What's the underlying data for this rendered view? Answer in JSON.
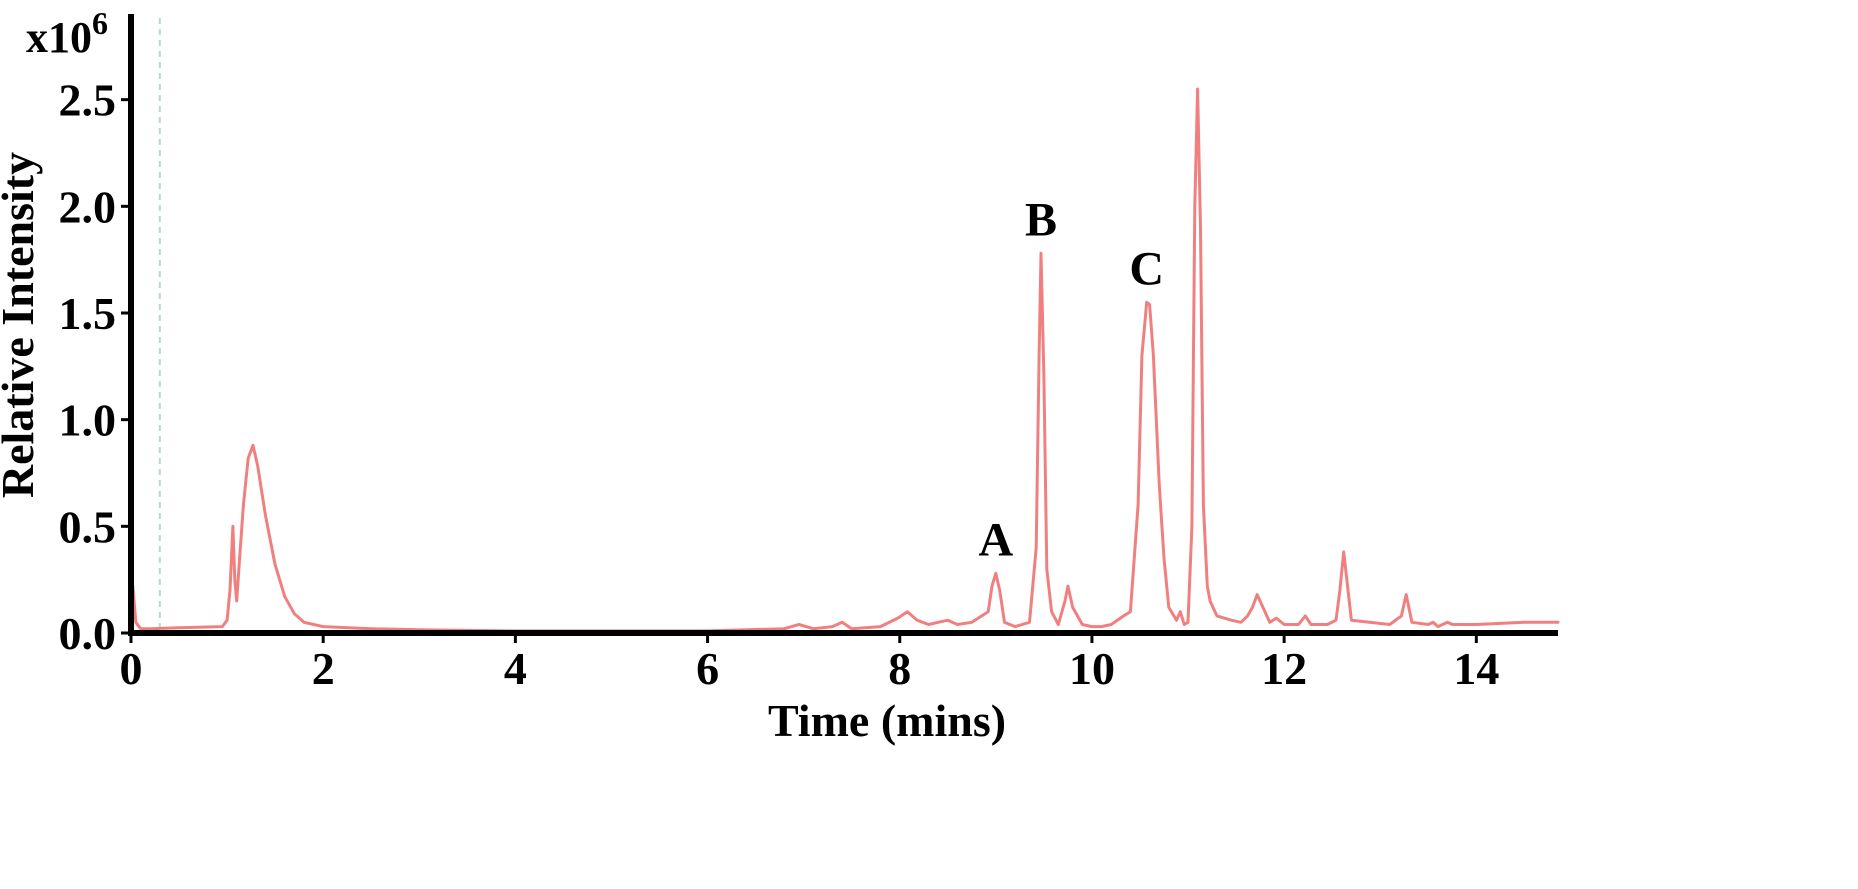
{
  "chart_data": {
    "type": "line",
    "xlabel": "Time (mins)",
    "ylabel": "Relative Intensity",
    "y_multiplier": {
      "base": "x10",
      "exponent": "6"
    },
    "xlim": [
      0,
      14.85
    ],
    "ylim": [
      0,
      2.85
    ],
    "xticks": [
      0,
      2,
      4,
      6,
      8,
      10,
      12,
      14
    ],
    "xtick_labels": [
      "0",
      "2",
      "4",
      "6",
      "8",
      "10",
      "12",
      "14"
    ],
    "yticks": [
      0,
      0.5,
      1.0,
      1.5,
      2.0,
      2.5
    ],
    "ytick_labels": [
      "0.0",
      "0.5",
      "1.0",
      "1.5",
      "2.0",
      "2.5"
    ],
    "grid": false,
    "line_color": "#f08080",
    "marker_line": {
      "x": 0.3,
      "color": "#b5dcc4",
      "style": "dashed"
    },
    "series": [
      {
        "x": [
          0.0,
          0.02,
          0.05,
          0.1,
          0.2,
          0.5,
          0.95,
          1.0,
          1.03,
          1.06,
          1.08,
          1.1,
          1.13,
          1.17,
          1.22,
          1.27,
          1.32,
          1.4,
          1.5,
          1.6,
          1.7,
          1.8,
          2.0,
          2.5,
          3.0,
          4.0,
          5.0,
          6.0,
          6.8,
          6.95,
          7.1,
          7.3,
          7.4,
          7.5,
          7.8,
          7.98,
          8.08,
          8.18,
          8.3,
          8.4,
          8.5,
          8.6,
          8.75,
          8.92,
          8.96,
          9.0,
          9.04,
          9.09,
          9.2,
          9.35,
          9.42,
          9.45,
          9.47,
          9.5,
          9.53,
          9.58,
          9.65,
          9.72,
          9.75,
          9.8,
          9.9,
          10.0,
          10.1,
          10.2,
          10.33,
          10.4,
          10.48,
          10.52,
          10.57,
          10.6,
          10.64,
          10.7,
          10.75,
          10.8,
          10.88,
          10.92,
          10.96,
          11.0,
          11.04,
          11.07,
          11.1,
          11.13,
          11.16,
          11.2,
          11.23,
          11.3,
          11.45,
          11.55,
          11.62,
          11.67,
          11.72,
          11.85,
          11.92,
          12.0,
          12.15,
          12.22,
          12.28,
          12.45,
          12.54,
          12.58,
          12.62,
          12.7,
          13.1,
          13.22,
          13.27,
          13.33,
          13.5,
          13.55,
          13.6,
          13.7,
          13.75,
          14.0,
          14.5,
          14.85
        ],
        "y": [
          0.02,
          0.22,
          0.05,
          0.02,
          0.02,
          0.025,
          0.03,
          0.06,
          0.2,
          0.5,
          0.25,
          0.15,
          0.35,
          0.6,
          0.82,
          0.88,
          0.78,
          0.55,
          0.32,
          0.17,
          0.09,
          0.05,
          0.03,
          0.02,
          0.015,
          0.01,
          0.01,
          0.01,
          0.02,
          0.04,
          0.02,
          0.03,
          0.05,
          0.02,
          0.03,
          0.07,
          0.1,
          0.06,
          0.04,
          0.05,
          0.06,
          0.04,
          0.05,
          0.1,
          0.22,
          0.28,
          0.2,
          0.05,
          0.03,
          0.05,
          0.4,
          1.3,
          1.78,
          1.2,
          0.3,
          0.1,
          0.04,
          0.15,
          0.22,
          0.12,
          0.04,
          0.03,
          0.03,
          0.04,
          0.08,
          0.1,
          0.6,
          1.3,
          1.55,
          1.54,
          1.3,
          0.7,
          0.35,
          0.12,
          0.06,
          0.1,
          0.04,
          0.05,
          0.5,
          2.0,
          2.55,
          1.9,
          0.6,
          0.22,
          0.15,
          0.08,
          0.06,
          0.05,
          0.08,
          0.12,
          0.18,
          0.05,
          0.07,
          0.04,
          0.04,
          0.08,
          0.04,
          0.04,
          0.06,
          0.2,
          0.38,
          0.06,
          0.04,
          0.08,
          0.18,
          0.05,
          0.04,
          0.05,
          0.03,
          0.05,
          0.04,
          0.04,
          0.05,
          0.05
        ]
      }
    ],
    "annotations": [
      {
        "text": "A",
        "x": 9.0,
        "y": 0.28
      },
      {
        "text": "B",
        "x": 9.47,
        "y": 1.78
      },
      {
        "text": "C",
        "x": 10.57,
        "y": 1.55
      }
    ]
  }
}
